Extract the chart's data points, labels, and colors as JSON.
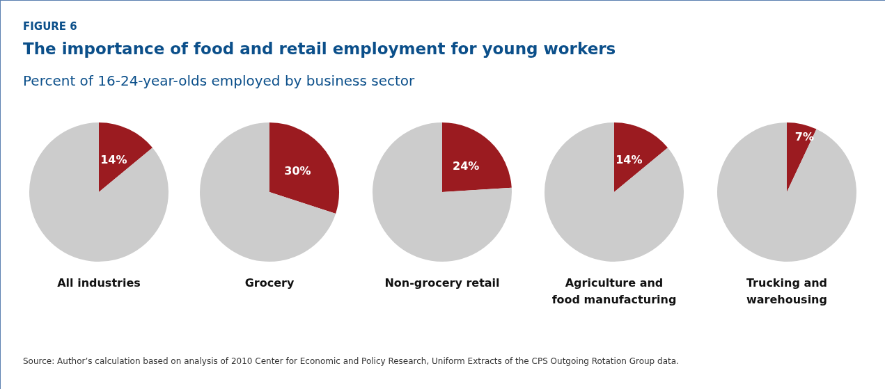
{
  "chart_data": [
    {
      "type": "other",
      "title": "The importance of food and retail employment for young workers",
      "subtitle": "Percent of 16-24-year-olds employed by business sector",
      "annotations": [
        "FIGURE 6",
        "Source: Author’s calculation based on analysis of 2010 Center for Economic and Policy Research, Uniform Extracts of the CPS Outgoing Rotation Group data."
      ]
    },
    {
      "type": "pie",
      "xlabel": "All industries",
      "categories": [
        null,
        null
      ],
      "values": [
        14,
        86
      ],
      "colors": [
        "#9b1b20",
        "#cccccc"
      ],
      "value_labels": [
        "14%",
        null
      ],
      "legend": false
    },
    {
      "type": "pie",
      "xlabel": "Grocery",
      "categories": [
        null,
        null
      ],
      "values": [
        30,
        70
      ],
      "colors": [
        "#9b1b20",
        "#cccccc"
      ],
      "value_labels": [
        "30%",
        null
      ],
      "legend": false
    },
    {
      "type": "pie",
      "xlabel": "Non-grocery retail",
      "categories": [
        null,
        null
      ],
      "values": [
        24,
        76
      ],
      "colors": [
        "#9b1b20",
        "#cccccc"
      ],
      "value_labels": [
        "24%",
        null
      ],
      "legend": false
    },
    {
      "type": "pie",
      "xlabel": "Agriculture and\nfood manufacturing",
      "categories": [
        null,
        null
      ],
      "values": [
        14,
        86
      ],
      "colors": [
        "#9b1b20",
        "#cccccc"
      ],
      "value_labels": [
        "14%",
        null
      ],
      "legend": false
    },
    {
      "type": "pie",
      "xlabel": "Trucking and\nwarehousing",
      "categories": [
        null,
        null
      ],
      "values": [
        7,
        93
      ],
      "colors": [
        "#9b1b20",
        "#cccccc"
      ],
      "value_labels": [
        "7%",
        null
      ],
      "legend": false
    }
  ]
}
